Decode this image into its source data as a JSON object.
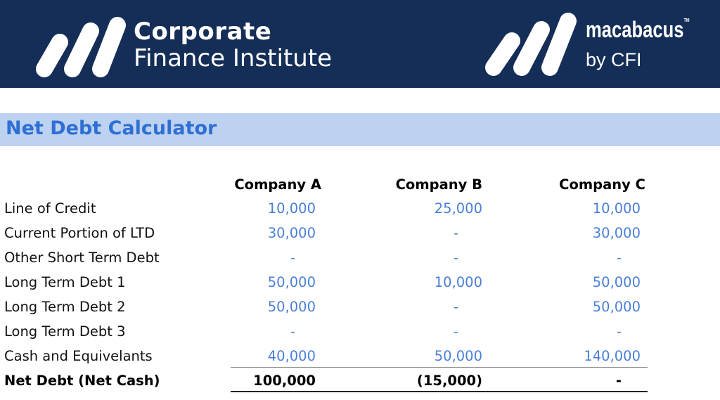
{
  "header": {
    "cfi_logo": {
      "line1": "Corporate",
      "line2": "Finance Institute"
    },
    "macabacus_logo": {
      "line1": "macabacus",
      "tm": "TM",
      "line2": "by CFI"
    },
    "background_color": "#152e57"
  },
  "title": "Net Debt Calculator",
  "columns": [
    "Company A",
    "Company B",
    "Company C"
  ],
  "rows": [
    {
      "label": "Line of Credit",
      "values": [
        "10,000",
        "25,000",
        "10,000"
      ]
    },
    {
      "label": "Current Portion of LTD",
      "values": [
        "30,000",
        "-",
        "30,000"
      ]
    },
    {
      "label": "Other Short Term Debt",
      "values": [
        "-",
        "-",
        "-"
      ]
    },
    {
      "label": "Long Term Debt 1",
      "values": [
        "50,000",
        "10,000",
        "50,000"
      ]
    },
    {
      "label": "Long Term Debt 2",
      "values": [
        "50,000",
        "-",
        "50,000"
      ]
    },
    {
      "label": "Long Term Debt 3",
      "values": [
        "-",
        "-",
        "-"
      ]
    },
    {
      "label": "Cash and Equivelants",
      "values": [
        "40,000",
        "50,000",
        "140,000"
      ]
    }
  ],
  "total": {
    "label": "Net Debt (Net Cash)",
    "values": [
      "100,000",
      "(15,000)",
      "-"
    ]
  },
  "colors": {
    "input_value": "#4a7fd8",
    "title": "#2e6fd4",
    "title_band": "#bdd1f0"
  }
}
